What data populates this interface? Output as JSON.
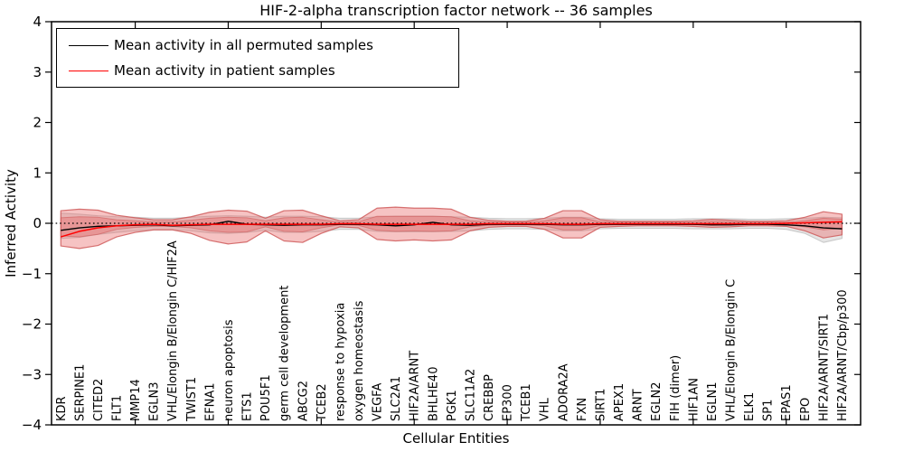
{
  "chart_data": {
    "type": "line",
    "title": "HIF-2-alpha transcription factor network -- 36 samples",
    "xlabel": "Cellular Entities",
    "ylabel": "Inferred Activity",
    "ylim": [
      -4,
      4
    ],
    "ytick_values": [
      -4,
      -3,
      -2,
      -1,
      0,
      1,
      2,
      3,
      4
    ],
    "ytick_labels": [
      "−4",
      "−3",
      "−2",
      "−1",
      "0",
      "1",
      "2",
      "3",
      "4"
    ],
    "xtick_major_indices": [
      4,
      9,
      14,
      19,
      24,
      29,
      34,
      39
    ],
    "grid": false,
    "legend_position": "upper left",
    "legend": [
      {
        "label": "Mean activity in all permuted samples",
        "color": "#000000"
      },
      {
        "label": "Mean activity in patient samples",
        "color": "#ff0000"
      }
    ],
    "categories": [
      "KDR",
      "SERPINE1",
      "CITED2",
      "FLT1",
      "MMP14",
      "EGLN3",
      "VHL/Elongin B/Elongin C/HIF2A",
      "TWIST1",
      "EFNA1",
      "neuron apoptosis",
      "ETS1",
      "POU5F1",
      "germ cell development",
      "ABCG2",
      "TCEB2",
      "response to hypoxia",
      "oxygen homeostasis",
      "VEGFA",
      "SLC2A1",
      "HIF2A/ARNT",
      "BHLHE40",
      "PGK1",
      "SLC11A2",
      "CREBBP",
      "EP300",
      "TCEB1",
      "VHL",
      "ADORA2A",
      "FXN",
      "SIRT1",
      "APEX1",
      "ARNT",
      "EGLN2",
      "FIH (dimer)",
      "HIF1AN",
      "EGLN1",
      "VHL/Elongin B/Elongin C",
      "ELK1",
      "SP1",
      "EPAS1",
      "EPO",
      "HIF2A/ARNT/SIRT1",
      "HIF2A/ARNT/Cbp/p300"
    ],
    "zero_line": {
      "value": 0,
      "color": "#000000",
      "style": "dotted"
    },
    "bands": [
      {
        "name": "permuted-samples-range",
        "fill": "#c8c8c8",
        "fill_opacity": 0.45,
        "edge": "#b8b8b8",
        "edge_opacity": 0.7,
        "edge_width": 1.1,
        "top": [
          0.2,
          0.18,
          0.15,
          0.13,
          0.12,
          0.1,
          0.1,
          0.12,
          0.14,
          0.15,
          0.14,
          0.12,
          0.14,
          0.14,
          0.13,
          0.1,
          0.1,
          0.13,
          0.14,
          0.14,
          0.14,
          0.13,
          0.12,
          0.1,
          0.09,
          0.09,
          0.1,
          0.12,
          0.12,
          0.09,
          0.08,
          0.08,
          0.08,
          0.08,
          0.09,
          0.09,
          0.09,
          0.08,
          0.08,
          0.09,
          0.1,
          0.12,
          0.11
        ],
        "bottom": [
          -0.3,
          -0.28,
          -0.22,
          -0.18,
          -0.15,
          -0.13,
          -0.13,
          -0.15,
          -0.19,
          -0.2,
          -0.18,
          -0.14,
          -0.18,
          -0.18,
          -0.16,
          -0.12,
          -0.12,
          -0.16,
          -0.17,
          -0.17,
          -0.17,
          -0.16,
          -0.15,
          -0.12,
          -0.11,
          -0.11,
          -0.12,
          -0.15,
          -0.15,
          -0.11,
          -0.1,
          -0.1,
          -0.1,
          -0.1,
          -0.11,
          -0.11,
          -0.11,
          -0.1,
          -0.1,
          -0.12,
          -0.2,
          -0.38,
          -0.3
        ]
      },
      {
        "name": "patient-samples-range",
        "fill": "#e86868",
        "fill_opacity": 0.4,
        "edge": "#cf5b5b",
        "edge_opacity": 0.85,
        "edge_width": 1.2,
        "top": [
          0.25,
          0.28,
          0.26,
          0.16,
          0.11,
          0.07,
          0.07,
          0.13,
          0.22,
          0.26,
          0.24,
          0.1,
          0.25,
          0.26,
          0.15,
          0.05,
          0.07,
          0.3,
          0.32,
          0.3,
          0.3,
          0.28,
          0.12,
          0.06,
          0.04,
          0.04,
          0.1,
          0.25,
          0.25,
          0.07,
          0.04,
          0.04,
          0.04,
          0.04,
          0.05,
          0.08,
          0.06,
          0.04,
          0.04,
          0.05,
          0.12,
          0.23,
          0.18
        ],
        "bottom": [
          -0.45,
          -0.5,
          -0.44,
          -0.27,
          -0.18,
          -0.13,
          -0.13,
          -0.2,
          -0.34,
          -0.41,
          -0.37,
          -0.15,
          -0.35,
          -0.38,
          -0.2,
          -0.07,
          -0.09,
          -0.32,
          -0.35,
          -0.33,
          -0.35,
          -0.33,
          -0.15,
          -0.08,
          -0.06,
          -0.06,
          -0.12,
          -0.29,
          -0.29,
          -0.08,
          -0.06,
          -0.05,
          -0.05,
          -0.05,
          -0.06,
          -0.08,
          -0.07,
          -0.05,
          -0.05,
          -0.06,
          -0.15,
          -0.29,
          -0.23
        ]
      },
      {
        "name": "patient-samples-core",
        "fill": "#e86868",
        "fill_opacity": 0.4,
        "edge": "#cf5b5b",
        "edge_opacity": 0.6,
        "edge_width": 1,
        "top": [
          0.11,
          0.13,
          0.12,
          0.07,
          0.05,
          0.03,
          0.03,
          0.06,
          0.1,
          0.12,
          0.11,
          0.05,
          0.11,
          0.12,
          0.07,
          0.02,
          0.03,
          0.14,
          0.14,
          0.14,
          0.14,
          0.13,
          0.05,
          0.03,
          0.02,
          0.02,
          0.05,
          0.11,
          0.11,
          0.03,
          0.02,
          0.02,
          0.02,
          0.02,
          0.02,
          0.04,
          0.03,
          0.02,
          0.02,
          0.02,
          0.05,
          0.1,
          0.08
        ],
        "bottom": [
          -0.25,
          -0.27,
          -0.22,
          -0.12,
          -0.08,
          -0.06,
          -0.06,
          -0.09,
          -0.15,
          -0.18,
          -0.17,
          -0.07,
          -0.16,
          -0.17,
          -0.09,
          -0.03,
          -0.04,
          -0.14,
          -0.16,
          -0.15,
          -0.16,
          -0.15,
          -0.07,
          -0.04,
          -0.03,
          -0.03,
          -0.05,
          -0.13,
          -0.13,
          -0.04,
          -0.03,
          -0.02,
          -0.02,
          -0.02,
          -0.03,
          -0.04,
          -0.03,
          -0.02,
          -0.02,
          -0.03,
          -0.07,
          -0.13,
          -0.1
        ]
      }
    ],
    "series": [
      {
        "name": "Mean activity in all permuted samples",
        "color": "#000000",
        "width": 1.4,
        "values": [
          -0.14,
          -0.09,
          -0.06,
          -0.05,
          -0.04,
          -0.03,
          -0.05,
          -0.04,
          -0.03,
          0.04,
          -0.02,
          -0.03,
          -0.04,
          -0.03,
          -0.03,
          -0.02,
          -0.02,
          -0.03,
          -0.05,
          -0.03,
          0.02,
          -0.03,
          -0.04,
          -0.02,
          -0.02,
          -0.02,
          -0.02,
          -0.03,
          -0.03,
          -0.02,
          -0.02,
          -0.02,
          -0.02,
          -0.02,
          -0.02,
          -0.03,
          -0.03,
          -0.02,
          -0.02,
          -0.03,
          -0.05,
          -0.09,
          -0.11
        ]
      },
      {
        "name": "Mean activity in patient samples",
        "color": "#ff0000",
        "width": 1.5,
        "values": [
          -0.27,
          -0.16,
          -0.09,
          -0.05,
          -0.03,
          -0.02,
          -0.04,
          -0.03,
          -0.02,
          -0.02,
          -0.02,
          -0.02,
          -0.02,
          -0.02,
          -0.02,
          -0.01,
          -0.01,
          -0.02,
          -0.02,
          -0.02,
          -0.02,
          -0.02,
          -0.02,
          -0.01,
          -0.01,
          -0.01,
          -0.01,
          -0.02,
          -0.02,
          -0.01,
          -0.01,
          -0.01,
          -0.01,
          -0.01,
          -0.01,
          -0.01,
          -0.01,
          -0.01,
          -0.01,
          0.0,
          0.01,
          0.02,
          0.03
        ]
      }
    ]
  }
}
